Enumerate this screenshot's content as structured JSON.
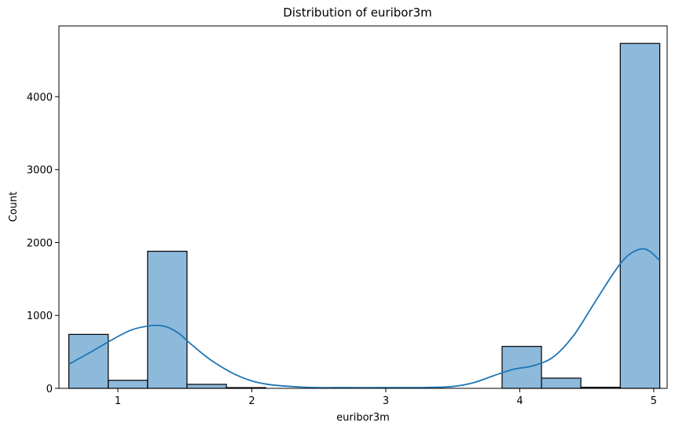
{
  "chart_data": {
    "type": "bar",
    "subtype": "histogram",
    "title": "Distribution of euribor3m",
    "xlabel": "euribor3m",
    "ylabel": "Count",
    "xlim": [
      0.56,
      5.1
    ],
    "ylim": [
      0,
      4970
    ],
    "xticks": [
      1,
      2,
      3,
      4,
      5
    ],
    "yticks": [
      0,
      1000,
      2000,
      3000,
      4000
    ],
    "bin_edges": [
      0.634,
      0.928,
      1.222,
      1.516,
      1.81,
      2.104,
      2.398,
      2.692,
      2.986,
      3.28,
      3.574,
      3.868,
      4.162,
      4.456,
      4.75,
      5.045
    ],
    "counts": [
      740,
      110,
      1880,
      55,
      10,
      0,
      0,
      0,
      0,
      0,
      0,
      575,
      140,
      15,
      4730
    ],
    "kde": {
      "x": [
        0.634,
        0.8,
        0.95,
        1.1,
        1.25,
        1.35,
        1.45,
        1.55,
        1.7,
        1.9,
        2.1,
        2.4,
        2.7,
        3.0,
        3.3,
        3.5,
        3.65,
        3.8,
        3.95,
        4.1,
        4.25,
        4.4,
        4.55,
        4.7,
        4.8,
        4.9,
        4.97,
        5.045
      ],
      "y": [
        330,
        500,
        660,
        800,
        860,
        850,
        760,
        600,
        380,
        170,
        60,
        15,
        10,
        10,
        12,
        25,
        75,
        170,
        260,
        310,
        430,
        720,
        1150,
        1580,
        1810,
        1910,
        1880,
        1750
      ]
    },
    "grid": false,
    "legend": "none",
    "colors": {
      "bar_fill": "#8db9db",
      "bar_edge": "#000000",
      "kde_line": "#1f77b4"
    }
  }
}
